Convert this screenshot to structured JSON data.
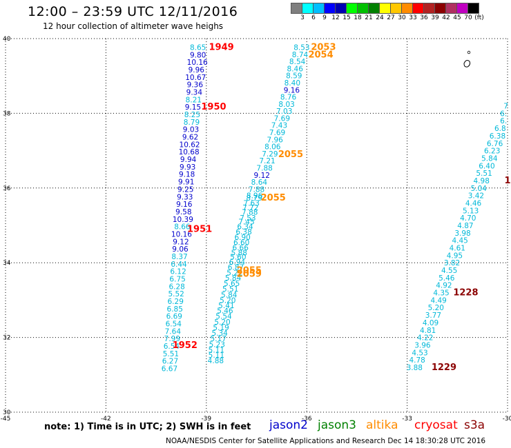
{
  "header": {
    "title": "12:00 – 23:59 UTC 12/11/2016",
    "subtitle": "12 hour collection of altimeter wave heighs"
  },
  "scale": {
    "colors": [
      "#7f7f7f",
      "#00ffff",
      "#00bfff",
      "#0000ff",
      "#0000b2",
      "#00ff00",
      "#00c000",
      "#008000",
      "#ffff00",
      "#ffc800",
      "#ff8c00",
      "#ff0000",
      "#b22222",
      "#8b0000",
      "#b03060",
      "#c000c0",
      "#000000"
    ],
    "labels": [
      "3",
      "6",
      "9",
      "12",
      "15",
      "18",
      "21",
      "24",
      "27",
      "30",
      "33",
      "36",
      "39",
      "42",
      "45",
      "70",
      "(ft)"
    ]
  },
  "map": {
    "lon_ticks": [
      "-45",
      "-42",
      "-39",
      "-36",
      "-33",
      "-30"
    ],
    "lat_ticks": [
      "40",
      "38",
      "36",
      "34",
      "32",
      "30"
    ]
  },
  "satellite_colors": {
    "jason2": "#0000cc",
    "jason3": "#008000",
    "altika": "#ff8c00",
    "cryosat": "#ff0000",
    "s3a": "#8b0000",
    "cyan": "#00b8d8"
  },
  "labels": [
    {
      "t": "8.65",
      "c": "cyan",
      "lon": -39.25,
      "lat": 39.77
    },
    {
      "t": "9.80",
      "c": "jason2",
      "lon": -39.25,
      "lat": 39.57
    },
    {
      "t": "10.16",
      "c": "jason2",
      "lon": -39.27,
      "lat": 39.37
    },
    {
      "t": "9.96",
      "c": "jason2",
      "lon": -39.3,
      "lat": 39.17
    },
    {
      "t": "10.67",
      "c": "jason2",
      "lon": -39.32,
      "lat": 38.97
    },
    {
      "t": "9.36",
      "c": "jason2",
      "lon": -39.34,
      "lat": 38.77
    },
    {
      "t": "9.34",
      "c": "jason2",
      "lon": -39.36,
      "lat": 38.57
    },
    {
      "t": "8.21",
      "c": "cyan",
      "lon": -39.38,
      "lat": 38.37
    },
    {
      "t": "9.15",
      "c": "jason2",
      "lon": -39.4,
      "lat": 38.17
    },
    {
      "t": "8.25",
      "c": "cyan",
      "lon": -39.42,
      "lat": 37.97
    },
    {
      "t": "8.79",
      "c": "cyan",
      "lon": -39.44,
      "lat": 37.77
    },
    {
      "t": "9.03",
      "c": "jason2",
      "lon": -39.46,
      "lat": 37.57
    },
    {
      "t": "9.62",
      "c": "jason2",
      "lon": -39.48,
      "lat": 37.37
    },
    {
      "t": "10.62",
      "c": "jason2",
      "lon": -39.5,
      "lat": 37.17
    },
    {
      "t": "10.68",
      "c": "jason2",
      "lon": -39.52,
      "lat": 36.97
    },
    {
      "t": "9.94",
      "c": "jason2",
      "lon": -39.54,
      "lat": 36.77
    },
    {
      "t": "9.93",
      "c": "jason2",
      "lon": -39.56,
      "lat": 36.57
    },
    {
      "t": "9.18",
      "c": "jason2",
      "lon": -39.58,
      "lat": 36.37
    },
    {
      "t": "9.91",
      "c": "jason2",
      "lon": -39.6,
      "lat": 36.17
    },
    {
      "t": "9.25",
      "c": "jason2",
      "lon": -39.62,
      "lat": 35.97
    },
    {
      "t": "9.33",
      "c": "jason2",
      "lon": -39.64,
      "lat": 35.77
    },
    {
      "t": "9.16",
      "c": "jason2",
      "lon": -39.66,
      "lat": 35.57
    },
    {
      "t": "9.58",
      "c": "jason2",
      "lon": -39.68,
      "lat": 35.37
    },
    {
      "t": "10.39",
      "c": "jason2",
      "lon": -39.7,
      "lat": 35.17
    },
    {
      "t": "8.66",
      "c": "cyan",
      "lon": -39.72,
      "lat": 34.97
    },
    {
      "t": "10.16",
      "c": "jason2",
      "lon": -39.74,
      "lat": 34.77
    },
    {
      "t": "9.12",
      "c": "jason2",
      "lon": -39.76,
      "lat": 34.57
    },
    {
      "t": "9.06",
      "c": "jason2",
      "lon": -39.78,
      "lat": 34.37
    },
    {
      "t": "8.37",
      "c": "cyan",
      "lon": -39.8,
      "lat": 34.17
    },
    {
      "t": "6.44",
      "c": "cyan",
      "lon": -39.82,
      "lat": 33.97
    },
    {
      "t": "6.12",
      "c": "cyan",
      "lon": -39.84,
      "lat": 33.77
    },
    {
      "t": "6.75",
      "c": "cyan",
      "lon": -39.86,
      "lat": 33.57
    },
    {
      "t": "6.28",
      "c": "cyan",
      "lon": -39.88,
      "lat": 33.37
    },
    {
      "t": "5.52",
      "c": "cyan",
      "lon": -39.9,
      "lat": 33.17
    },
    {
      "t": "6.29",
      "c": "cyan",
      "lon": -39.92,
      "lat": 32.97
    },
    {
      "t": "6.85",
      "c": "cyan",
      "lon": -39.94,
      "lat": 32.77
    },
    {
      "t": "6.69",
      "c": "cyan",
      "lon": -39.96,
      "lat": 32.57
    },
    {
      "t": "6.54",
      "c": "cyan",
      "lon": -39.98,
      "lat": 32.37
    },
    {
      "t": "7.64",
      "c": "cyan",
      "lon": -40.0,
      "lat": 32.17
    },
    {
      "t": "7.99",
      "c": "cyan",
      "lon": -40.02,
      "lat": 31.97
    },
    {
      "t": "6.54",
      "c": "cyan",
      "lon": -40.04,
      "lat": 31.77
    },
    {
      "t": "5.51",
      "c": "cyan",
      "lon": -40.06,
      "lat": 31.57
    },
    {
      "t": "6.27",
      "c": "cyan",
      "lon": -40.08,
      "lat": 31.37
    },
    {
      "t": "6.67",
      "c": "cyan",
      "lon": -40.1,
      "lat": 31.17
    },
    {
      "t": "1949",
      "c": "cryosat",
      "bold": true,
      "lon": -38.55,
      "lat": 39.77
    },
    {
      "t": "1950",
      "c": "cryosat",
      "bold": true,
      "lon": -38.78,
      "lat": 38.17
    },
    {
      "t": "1951",
      "c": "cryosat",
      "bold": true,
      "lon": -39.2,
      "lat": 34.9
    },
    {
      "t": "1952",
      "c": "cryosat",
      "bold": true,
      "lon": -39.64,
      "lat": 31.79
    },
    {
      "t": "8.53",
      "c": "cyan",
      "lon": -36.15,
      "lat": 39.77
    },
    {
      "t": "8.74",
      "c": "cyan",
      "lon": -36.2,
      "lat": 39.58
    },
    {
      "t": "8.54",
      "c": "cyan",
      "lon": -36.28,
      "lat": 39.39
    },
    {
      "t": "8.46",
      "c": "cyan",
      "lon": -36.35,
      "lat": 39.2
    },
    {
      "t": "8.59",
      "c": "cyan",
      "lon": -36.38,
      "lat": 39.01
    },
    {
      "t": "8.40",
      "c": "cyan",
      "lon": -36.43,
      "lat": 38.82
    },
    {
      "t": "9.16",
      "c": "jason2",
      "lon": -36.45,
      "lat": 38.63
    },
    {
      "t": "8.76",
      "c": "cyan",
      "lon": -36.55,
      "lat": 38.44
    },
    {
      "t": "8.03",
      "c": "cyan",
      "lon": -36.6,
      "lat": 38.25
    },
    {
      "t": "7.03",
      "c": "cyan",
      "lon": -36.67,
      "lat": 38.06
    },
    {
      "t": "7.69",
      "c": "cyan",
      "lon": -36.74,
      "lat": 37.87
    },
    {
      "t": "7.43",
      "c": "cyan",
      "lon": -36.82,
      "lat": 37.68
    },
    {
      "t": "7.69",
      "c": "cyan",
      "lon": -36.88,
      "lat": 37.49
    },
    {
      "t": "7.96",
      "c": "cyan",
      "lon": -36.95,
      "lat": 37.3
    },
    {
      "t": "8.06",
      "c": "cyan",
      "lon": -37.02,
      "lat": 37.11
    },
    {
      "t": "7.29",
      "c": "cyan",
      "lon": -37.1,
      "lat": 36.92
    },
    {
      "t": "7.21",
      "c": "cyan",
      "lon": -37.18,
      "lat": 36.73
    },
    {
      "t": "7.88",
      "c": "cyan",
      "lon": -37.26,
      "lat": 36.54
    },
    {
      "t": "9.12",
      "c": "jason2",
      "lon": -37.34,
      "lat": 36.35
    },
    {
      "t": "8.64",
      "c": "cyan",
      "lon": -37.42,
      "lat": 36.16
    },
    {
      "t": "7.88",
      "c": "cyan",
      "lon": -37.5,
      "lat": 35.97
    },
    {
      "t": "8.96",
      "c": "cyan",
      "lon": -37.56,
      "lat": 35.8
    },
    {
      "t": "8.79",
      "c": "cyan",
      "lon": -37.57,
      "lat": 35.74
    },
    {
      "t": "7.63",
      "c": "cyan",
      "lon": -37.65,
      "lat": 35.6
    },
    {
      "t": "7.72",
      "c": "cyan",
      "lon": -37.68,
      "lat": 35.48
    },
    {
      "t": "7.88",
      "c": "cyan",
      "lon": -37.7,
      "lat": 35.36
    },
    {
      "t": "7.53",
      "c": "cyan",
      "lon": -37.76,
      "lat": 35.2
    },
    {
      "t": "7.45",
      "c": "cyan",
      "lon": -37.8,
      "lat": 35.1
    },
    {
      "t": "6.34",
      "c": "cyan",
      "lon": -37.84,
      "lat": 34.97
    },
    {
      "t": "6.38",
      "c": "cyan",
      "lon": -37.88,
      "lat": 34.83
    },
    {
      "t": "6.90",
      "c": "cyan",
      "lon": -37.92,
      "lat": 34.69
    },
    {
      "t": "6.60",
      "c": "cyan",
      "lon": -37.95,
      "lat": 34.55
    },
    {
      "t": "6.66",
      "c": "cyan",
      "lon": -37.98,
      "lat": 34.41
    },
    {
      "t": "5.88",
      "c": "cyan",
      "lon": -38.02,
      "lat": 34.27
    },
    {
      "t": "5.60",
      "c": "cyan",
      "lon": -38.05,
      "lat": 34.16
    },
    {
      "t": "6.94",
      "c": "cyan",
      "lon": -38.08,
      "lat": 34.02
    },
    {
      "t": "6.87",
      "c": "cyan",
      "lon": -38.12,
      "lat": 33.88
    },
    {
      "t": "5.22",
      "c": "cyan",
      "lon": -38.15,
      "lat": 33.74
    },
    {
      "t": "5.84",
      "c": "cyan",
      "lon": -38.2,
      "lat": 33.6
    },
    {
      "t": "5.65",
      "c": "cyan",
      "lon": -38.24,
      "lat": 33.45
    },
    {
      "t": "5.51",
      "c": "cyan",
      "lon": -38.28,
      "lat": 33.3
    },
    {
      "t": "5.84",
      "c": "cyan",
      "lon": -38.32,
      "lat": 33.15
    },
    {
      "t": "5.20",
      "c": "cyan",
      "lon": -38.36,
      "lat": 33.0
    },
    {
      "t": "5.41",
      "c": "cyan",
      "lon": -38.4,
      "lat": 32.86
    },
    {
      "t": "5.46",
      "c": "cyan",
      "lon": -38.44,
      "lat": 32.72
    },
    {
      "t": "5.54",
      "c": "cyan",
      "lon": -38.48,
      "lat": 32.57
    },
    {
      "t": "5.20",
      "c": "cyan",
      "lon": -38.52,
      "lat": 32.42
    },
    {
      "t": "5.19",
      "c": "cyan",
      "lon": -38.56,
      "lat": 32.27
    },
    {
      "t": "5.34",
      "c": "cyan",
      "lon": -38.6,
      "lat": 32.12
    },
    {
      "t": "5.17",
      "c": "cyan",
      "lon": -38.64,
      "lat": 31.97
    },
    {
      "t": "5.23",
      "c": "cyan",
      "lon": -38.68,
      "lat": 31.82
    },
    {
      "t": "5.11",
      "c": "cyan",
      "lon": -38.7,
      "lat": 31.67
    },
    {
      "t": "5.11",
      "c": "cyan",
      "lon": -38.7,
      "lat": 31.53
    },
    {
      "t": "4.88",
      "c": "cyan",
      "lon": -38.72,
      "lat": 31.38
    },
    {
      "t": "2053",
      "c": "altika",
      "bold": true,
      "lon": -35.5,
      "lat": 39.77
    },
    {
      "t": "2054",
      "c": "altika",
      "bold": true,
      "lon": -35.58,
      "lat": 39.57
    },
    {
      "t": "2055",
      "c": "altika",
      "bold": true,
      "lon": -36.48,
      "lat": 36.9
    },
    {
      "t": "2055",
      "c": "altika",
      "bold": true,
      "lon": -37.0,
      "lat": 35.74
    },
    {
      "t": "2055",
      "c": "altika",
      "bold": true,
      "lon": -37.72,
      "lat": 33.79
    },
    {
      "t": "2059",
      "c": "altika",
      "bold": true,
      "lon": -37.72,
      "lat": 33.7
    },
    {
      "t": "7",
      "c": "cyan",
      "lon": -30.05,
      "lat": 38.2
    },
    {
      "t": "6.",
      "c": "cyan",
      "lon": -30.12,
      "lat": 38.0
    },
    {
      "t": "6.",
      "c": "cyan",
      "lon": -30.12,
      "lat": 37.8
    },
    {
      "t": "6.8",
      "c": "cyan",
      "lon": -30.22,
      "lat": 37.6
    },
    {
      "t": "6.38",
      "c": "cyan",
      "lon": -30.3,
      "lat": 37.4
    },
    {
      "t": "6.76",
      "c": "cyan",
      "lon": -30.38,
      "lat": 37.2
    },
    {
      "t": "6.23",
      "c": "cyan",
      "lon": -30.46,
      "lat": 37.0
    },
    {
      "t": "5.84",
      "c": "cyan",
      "lon": -30.54,
      "lat": 36.8
    },
    {
      "t": "6.40",
      "c": "cyan",
      "lon": -30.62,
      "lat": 36.6
    },
    {
      "t": "5.51",
      "c": "cyan",
      "lon": -30.7,
      "lat": 36.4
    },
    {
      "t": "4.98",
      "c": "cyan",
      "lon": -30.78,
      "lat": 36.2
    },
    {
      "t": "5.04",
      "c": "cyan",
      "lon": -30.86,
      "lat": 36.0
    },
    {
      "t": "3.42",
      "c": "cyan",
      "lon": -30.94,
      "lat": 35.8
    },
    {
      "t": "4.46",
      "c": "cyan",
      "lon": -31.02,
      "lat": 35.6
    },
    {
      "t": "5.13",
      "c": "cyan",
      "lon": -31.1,
      "lat": 35.4
    },
    {
      "t": "4.70",
      "c": "cyan",
      "lon": -31.18,
      "lat": 35.2
    },
    {
      "t": "4.87",
      "c": "cyan",
      "lon": -31.26,
      "lat": 35.0
    },
    {
      "t": "3.98",
      "c": "cyan",
      "lon": -31.34,
      "lat": 34.8
    },
    {
      "t": "4.45",
      "c": "cyan",
      "lon": -31.42,
      "lat": 34.6
    },
    {
      "t": "4.61",
      "c": "cyan",
      "lon": -31.5,
      "lat": 34.4
    },
    {
      "t": "4.95",
      "c": "cyan",
      "lon": -31.58,
      "lat": 34.2
    },
    {
      "t": "3.82",
      "c": "cyan",
      "lon": -31.66,
      "lat": 34.0
    },
    {
      "t": "4.55",
      "c": "cyan",
      "lon": -31.74,
      "lat": 33.8
    },
    {
      "t": "5.46",
      "c": "cyan",
      "lon": -31.82,
      "lat": 33.6
    },
    {
      "t": "4.92",
      "c": "cyan",
      "lon": -31.9,
      "lat": 33.4
    },
    {
      "t": "4.35",
      "c": "cyan",
      "lon": -31.98,
      "lat": 33.2
    },
    {
      "t": "4.49",
      "c": "cyan",
      "lon": -32.06,
      "lat": 33.0
    },
    {
      "t": "5.20",
      "c": "cyan",
      "lon": -32.14,
      "lat": 32.8
    },
    {
      "t": "3.77",
      "c": "cyan",
      "lon": -32.22,
      "lat": 32.6
    },
    {
      "t": "4.09",
      "c": "cyan",
      "lon": -32.3,
      "lat": 32.4
    },
    {
      "t": "4.81",
      "c": "cyan",
      "lon": -32.38,
      "lat": 32.2
    },
    {
      "t": "4.22",
      "c": "cyan",
      "lon": -32.46,
      "lat": 32.0
    },
    {
      "t": "3.96",
      "c": "cyan",
      "lon": -32.54,
      "lat": 31.8
    },
    {
      "t": "4.53",
      "c": "cyan",
      "lon": -32.62,
      "lat": 31.6
    },
    {
      "t": "4.78",
      "c": "cyan",
      "lon": -32.7,
      "lat": 31.4
    },
    {
      "t": "3.88",
      "c": "cyan",
      "lon": -32.78,
      "lat": 31.2
    },
    {
      "t": "1228",
      "c": "s3a",
      "bold": true,
      "lon": -31.25,
      "lat": 33.2
    },
    {
      "t": "1229",
      "c": "s3a",
      "bold": true,
      "lon": -31.9,
      "lat": 31.2
    },
    {
      "t": "1",
      "c": "s3a",
      "bold": true,
      "lon": -30.0,
      "lat": 36.2
    }
  ],
  "footer": {
    "note": "note: 1) Time is in UTC; 2) SWH is in feet",
    "legend": [
      {
        "name": "jason2",
        "color": "#0000cc"
      },
      {
        "name": "jason3",
        "color": "#008000"
      },
      {
        "name": "altika",
        "color": "#ff8c00"
      },
      {
        "name": "cryosat",
        "color": "#ff0000"
      },
      {
        "name": "s3a",
        "color": "#8b0000"
      }
    ],
    "credit": "NOAA/NESDIS Center for Satellite Applications and Research     Dec 14 18:30:28 UTC 2016"
  }
}
